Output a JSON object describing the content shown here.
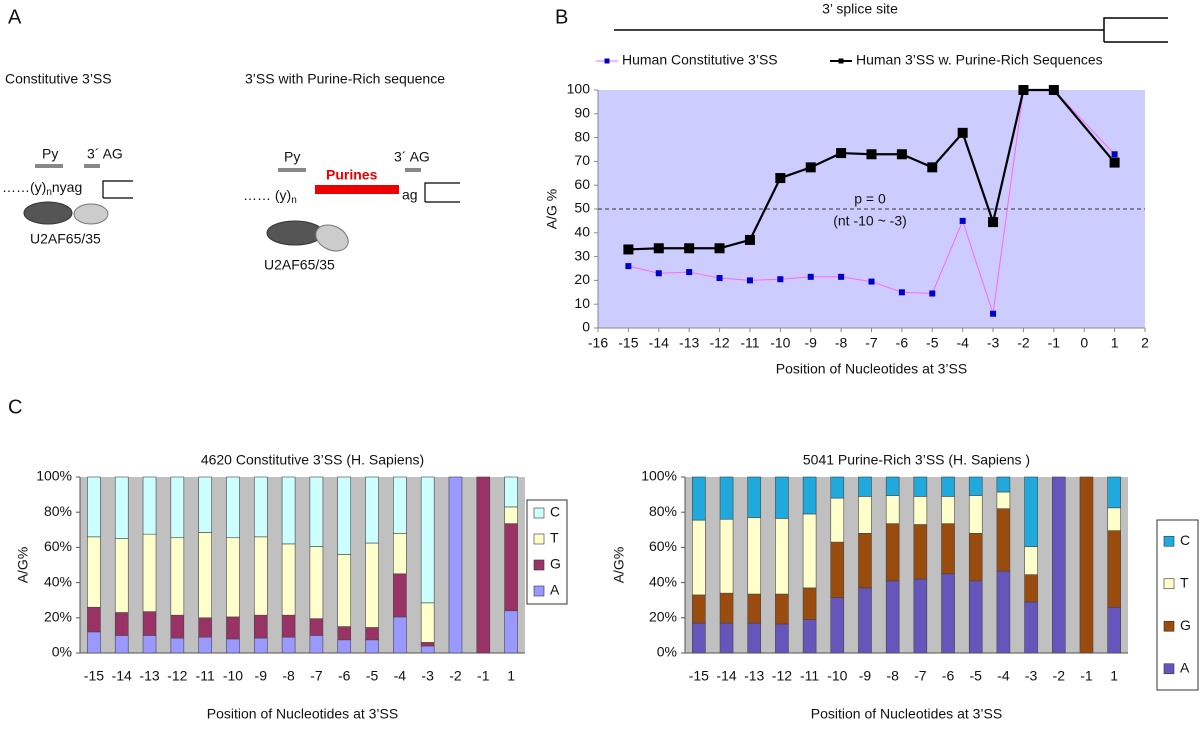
{
  "panels": [
    "A",
    "B",
    "C"
  ],
  "diagram": {
    "left_title": "Constitutive 3’SS",
    "right_title": "3’SS with Purine-Rich sequence",
    "py": "Py",
    "ag": "3´ AG",
    "left_strand": "……(y)",
    "subscript": "n",
    "left_strand_end": "nyag",
    "right_strand": "…… (y)",
    "purines": "Purines",
    "right_strand_end": "ag",
    "factor": "U2AF65/35"
  },
  "chart_data": [
    {
      "type": "line",
      "header": "3’ splice site",
      "x_label": "Position of Nucleotides at 3’SS",
      "y_label": "A/G %",
      "x": [
        -15,
        -14,
        -13,
        -12,
        -11,
        -10,
        -9,
        -8,
        -7,
        -6,
        -5,
        -4,
        -3,
        -2,
        -1,
        1
      ],
      "xlim": [
        -16,
        2
      ],
      "xticks": [
        -16,
        -15,
        -14,
        -13,
        -12,
        -11,
        -10,
        -9,
        -8,
        -7,
        -6,
        -5,
        -4,
        -3,
        -2,
        -1,
        0,
        1,
        2
      ],
      "ylim": [
        0,
        100
      ],
      "yticks": [
        0,
        10,
        20,
        30,
        40,
        50,
        60,
        70,
        80,
        90,
        100
      ],
      "background": "#ccccff",
      "legend": "top",
      "reference_line": 50,
      "annotations": [
        "p = 0",
        "(nt -10 ~ -3)"
      ],
      "series": [
        {
          "name": "Human Constitutive 3’SS",
          "color": "#0000cc",
          "line_color": "#ff66ff",
          "values": [
            26,
            23,
            23.5,
            21,
            20,
            20.5,
            21.5,
            21.5,
            19.5,
            15,
            14.5,
            45,
            6,
            100,
            100,
            73
          ]
        },
        {
          "name": "Human 3’SS w. Purine-Rich Sequences",
          "color": "#000000",
          "line_color": "#000000",
          "values": [
            33,
            33.5,
            33.5,
            33.5,
            37,
            63,
            67.5,
            73.5,
            73,
            73,
            67.5,
            82,
            44.5,
            100,
            100,
            69.5
          ]
        }
      ]
    },
    {
      "type": "bar",
      "title": "4620 Constitutive 3’SS (H. Sapiens)",
      "x_label": "Position of Nucleotides at 3’SS",
      "y_label": "A/G%",
      "categories": [
        "-15",
        "-14",
        "-13",
        "-12",
        "-11",
        "-10",
        "-9",
        "-8",
        "-7",
        "-6",
        "-5",
        "-4",
        "-3",
        "-2",
        "-1",
        "1"
      ],
      "ylim": [
        0,
        100
      ],
      "yticks": [
        {
          "value": 0,
          "label": "0%"
        },
        {
          "value": 20,
          "label": "20%"
        },
        {
          "value": 40,
          "label": "40%"
        },
        {
          "value": 60,
          "label": "60%"
        },
        {
          "value": 80,
          "label": "80%"
        },
        {
          "value": 100,
          "label": "100%"
        }
      ],
      "background": "#c0c0c0",
      "legend": "right",
      "series": [
        {
          "name": "A",
          "color": "#9999ff",
          "values": [
            12,
            10,
            10,
            8.5,
            9,
            8,
            8.5,
            9,
            10,
            7.5,
            7.5,
            20.5,
            4,
            100,
            0,
            24
          ]
        },
        {
          "name": "G",
          "color": "#993366",
          "values": [
            14,
            13,
            13.5,
            13,
            11,
            12.5,
            13,
            12.5,
            9.5,
            7.5,
            7,
            24.5,
            2,
            0,
            100,
            49.5
          ]
        },
        {
          "name": "T",
          "color": "#ffffcc",
          "values": [
            40,
            42,
            44,
            44,
            48.5,
            45,
            44.5,
            40.5,
            41,
            41,
            48,
            23,
            22.5,
            0,
            0,
            9.5
          ]
        },
        {
          "name": "C",
          "color": "#ccffff",
          "values": [
            34,
            35,
            32.5,
            34.5,
            31.5,
            34.5,
            34,
            38,
            39.5,
            44,
            37.5,
            32,
            71.5,
            0,
            0,
            17
          ]
        }
      ]
    },
    {
      "type": "bar",
      "title": "5041 Purine-Rich 3’SS (H. Sapiens )",
      "x_label": "Position of Nucleotides at 3’SS",
      "y_label": "A/G%",
      "categories": [
        "-15",
        "-14",
        "-13",
        "-12",
        "-11",
        "-10",
        "-9",
        "-8",
        "-7",
        "-6",
        "-5",
        "-4",
        "-3",
        "-2",
        "-1",
        "1"
      ],
      "ylim": [
        0,
        100
      ],
      "yticks": [
        {
          "value": 0,
          "label": "0%"
        },
        {
          "value": 20,
          "label": "20%"
        },
        {
          "value": 40,
          "label": "40%"
        },
        {
          "value": 60,
          "label": "60%"
        },
        {
          "value": 80,
          "label": "80%"
        },
        {
          "value": 100,
          "label": "100%"
        }
      ],
      "background": "#c0c0c0",
      "legend": "right",
      "series": [
        {
          "name": "A",
          "color": "#6655bb",
          "values": [
            17,
            17,
            17,
            16.5,
            19,
            31.5,
            37,
            41,
            42,
            45,
            41,
            46.5,
            29,
            100,
            0,
            26
          ]
        },
        {
          "name": "G",
          "color": "#994c0d",
          "values": [
            16,
            17,
            16.5,
            17,
            18,
            31.5,
            31,
            32.5,
            31,
            28.5,
            27,
            35.5,
            15.5,
            0,
            100,
            43.5
          ]
        },
        {
          "name": "T",
          "color": "#ffffcc",
          "values": [
            42.5,
            42,
            43.5,
            43,
            42,
            25,
            21,
            16,
            16,
            15.5,
            21.5,
            9.5,
            16,
            0,
            0,
            13
          ]
        },
        {
          "name": "C",
          "color": "#1fa9dd",
          "values": [
            24.5,
            24,
            23,
            23.5,
            21,
            12,
            11,
            10.5,
            11,
            11,
            10.5,
            8.5,
            39.5,
            0,
            0,
            17.5
          ]
        }
      ]
    }
  ]
}
